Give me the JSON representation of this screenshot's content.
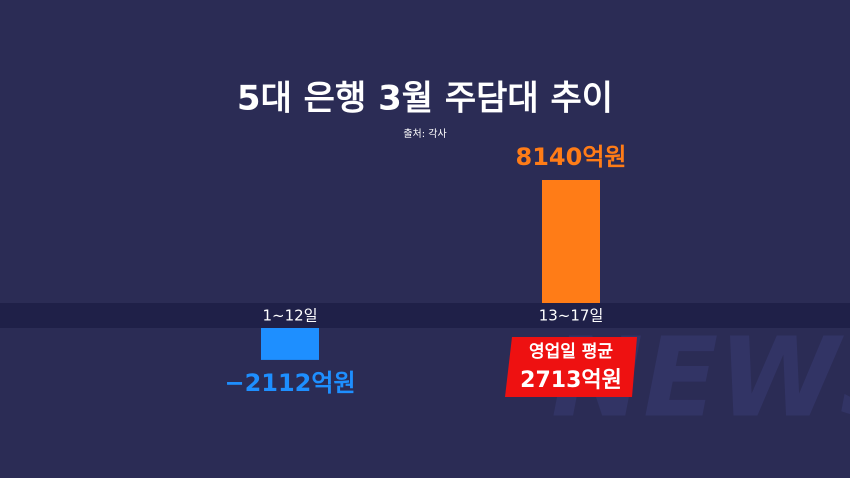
{
  "chart_data": {
    "type": "bar",
    "title": "5대 은행 3월 주담대 추이",
    "subtitle": "출처: 각사",
    "categories": [
      "1~12일",
      "13~17일"
    ],
    "values": [
      -2112,
      8140
    ],
    "value_labels": [
      "−2112억원",
      "8140억원"
    ],
    "colors": [
      "#1e8fff",
      "#ff7c17"
    ],
    "annotation": {
      "title": "영업일 평균",
      "text": "2713억원"
    },
    "watermark": "NEWS"
  }
}
